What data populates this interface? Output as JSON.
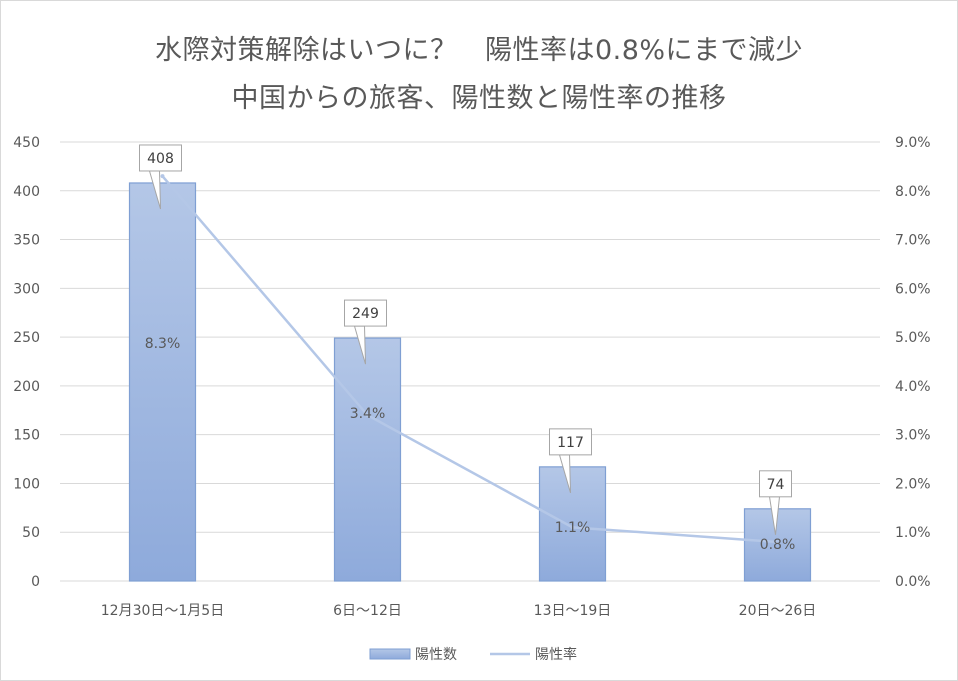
{
  "chart_data": {
    "type": "bar",
    "title": "水際対策解除はいつに？　陽性率は0.8%にまで減少",
    "subtitle": "中国からの旅客、陽性数と陽性率の推移",
    "categories": [
      "12月30日～1月5日",
      "6日～12日",
      "13日～19日",
      "20日～26日"
    ],
    "series": [
      {
        "name": "陽性数",
        "type": "bar",
        "axis": "left",
        "values": [
          408,
          249,
          117,
          74
        ],
        "labels": [
          "408",
          "249",
          "117",
          "74"
        ],
        "color": "#8eaadb"
      },
      {
        "name": "陽性率",
        "type": "line",
        "axis": "right",
        "values": [
          8.3,
          3.4,
          1.1,
          0.8
        ],
        "labels": [
          "8.3%",
          "3.4%",
          "1.1%",
          "0.8%"
        ],
        "color": "#b4c7e7"
      }
    ],
    "ylim": [
      0,
      450
    ],
    "y2lim": [
      0,
      9
    ],
    "yticks": [
      "0",
      "50",
      "100",
      "150",
      "200",
      "250",
      "300",
      "350",
      "400",
      "450"
    ],
    "y2ticks": [
      "0.0%",
      "1.0%",
      "2.0%",
      "3.0%",
      "4.0%",
      "5.0%",
      "6.0%",
      "7.0%",
      "8.0%",
      "9.0%"
    ],
    "grid": true,
    "legend_position": "bottom"
  }
}
